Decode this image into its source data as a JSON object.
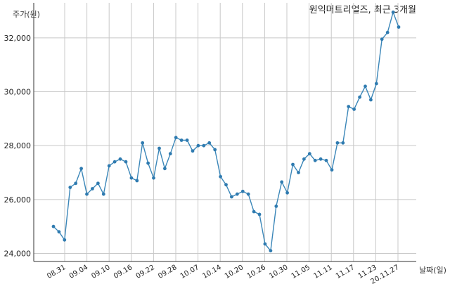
{
  "chart_data": {
    "type": "line",
    "title": "원익머트리얼즈, 최근 3개월",
    "ylabel": "주가(원)",
    "xlabel": "날짜(일)",
    "ylim": [
      23700,
      33300
    ],
    "yticks": [
      24000,
      26000,
      28000,
      30000,
      32000
    ],
    "ytick_labels": [
      "24,000",
      "26,000",
      "28,000",
      "30,000",
      "32,000"
    ],
    "grid": true,
    "xticks": [
      "08.31",
      "09.04",
      "09.10",
      "09.16",
      "09.22",
      "09.28",
      "10.07",
      "10.14",
      "10.20",
      "10.26",
      "10.30",
      "11.05",
      "11.11",
      "11.17",
      "11.23",
      "20.11.27"
    ],
    "series": [
      {
        "values": [
          25000,
          24800,
          24500,
          26450,
          26600,
          27150,
          26200,
          26400,
          26600,
          26200,
          27250,
          27400,
          27500,
          27400,
          26800,
          26700,
          28100,
          27350,
          26800,
          27900,
          27150,
          27700,
          28300,
          28200,
          28200,
          27800,
          28000,
          28000,
          28100,
          27850,
          26850,
          26550,
          26100,
          26200,
          26300,
          26200,
          25550,
          25450,
          24350,
          24100,
          25750,
          26650,
          26250,
          27300,
          27000,
          27500,
          27700,
          27450,
          27500,
          27450,
          27100,
          28100,
          28100,
          29450,
          29350,
          29800,
          30200,
          29700,
          30300,
          31950,
          32200,
          32950,
          32400
        ]
      }
    ]
  }
}
